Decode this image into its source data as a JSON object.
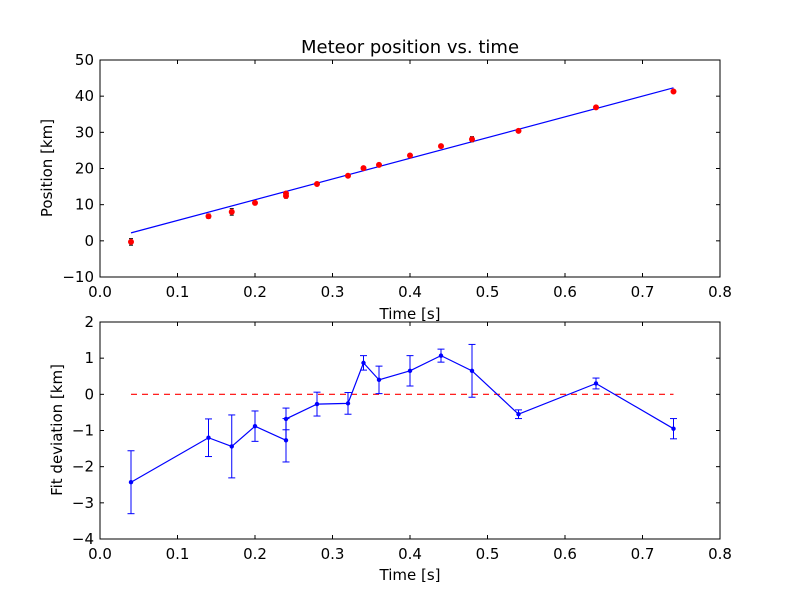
{
  "chart_data": [
    {
      "type": "scatter",
      "title": "Meteor position vs. time",
      "xlabel": "Time [s]",
      "ylabel": "Position [km]",
      "xlim": [
        0.0,
        0.8
      ],
      "ylim": [
        -10,
        50
      ],
      "xticks": [
        "0.0",
        "0.1",
        "0.2",
        "0.3",
        "0.4",
        "0.5",
        "0.6",
        "0.7",
        "0.8"
      ],
      "yticks": [
        "−10",
        "0",
        "10",
        "20",
        "30",
        "40",
        "50"
      ],
      "grid": false,
      "colors": {
        "points": "#ff0000",
        "fit_line": "#0000ff",
        "error_bars": "#000000"
      },
      "series": [
        {
          "x": [
            0.04,
            0.14,
            0.17,
            0.2,
            0.24,
            0.24,
            0.28,
            0.32,
            0.34,
            0.36,
            0.4,
            0.44,
            0.48,
            0.54,
            0.64,
            0.74
          ],
          "y": [
            -0.3,
            6.8,
            8.0,
            10.5,
            12.4,
            13.1,
            15.7,
            18.0,
            20.1,
            21.0,
            23.6,
            26.2,
            28.1,
            30.4,
            36.9,
            41.3
          ],
          "yerr": [
            0.9,
            0.6,
            0.9,
            0.5,
            0.6,
            0.4,
            0.3,
            0.3,
            0.2,
            0.4,
            0.4,
            0.2,
            0.7,
            0.1,
            0.15,
            0.3
          ]
        }
      ],
      "fit_line": {
        "x": [
          0.04,
          0.74
        ],
        "y": [
          2.2,
          42.3
        ]
      }
    },
    {
      "type": "line",
      "title": "",
      "xlabel": "Time [s]",
      "ylabel": "Fit deviation [km]",
      "xlim": [
        0.0,
        0.8
      ],
      "ylim": [
        -4,
        2
      ],
      "xticks": [
        "0.0",
        "0.1",
        "0.2",
        "0.3",
        "0.4",
        "0.5",
        "0.6",
        "0.7",
        "0.8"
      ],
      "yticks": [
        "−4",
        "−3",
        "−2",
        "−1",
        "0",
        "1",
        "2"
      ],
      "grid": false,
      "colors": {
        "series": "#0000ff",
        "reference": "#ff0000"
      },
      "series": [
        {
          "x": [
            0.04,
            0.14,
            0.17,
            0.2,
            0.24,
            0.24,
            0.28,
            0.32,
            0.34,
            0.36,
            0.4,
            0.44,
            0.48,
            0.54,
            0.64,
            0.74
          ],
          "y": [
            -2.43,
            -1.2,
            -1.44,
            -0.88,
            -1.27,
            -0.68,
            -0.27,
            -0.25,
            0.87,
            0.4,
            0.65,
            1.07,
            0.65,
            -0.55,
            0.3,
            -0.95
          ],
          "yerr": [
            0.87,
            0.52,
            0.87,
            0.42,
            0.6,
            0.3,
            0.33,
            0.3,
            0.2,
            0.38,
            0.42,
            0.18,
            0.73,
            0.12,
            0.15,
            0.28
          ]
        }
      ],
      "reference_line": {
        "x": [
          0.04,
          0.74
        ],
        "y": [
          0,
          0
        ]
      }
    }
  ]
}
